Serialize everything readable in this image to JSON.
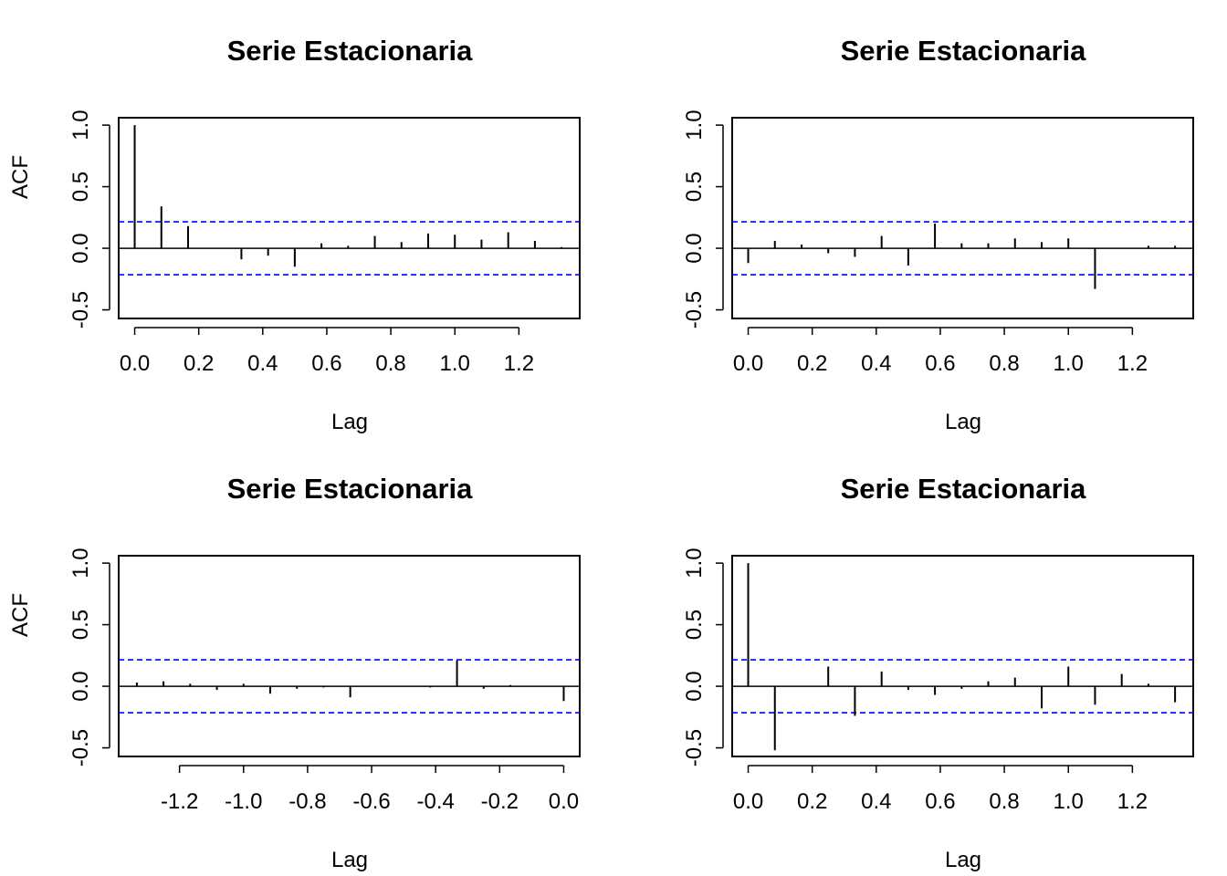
{
  "figure_title": "Serie Estacionaria",
  "chart_data": [
    {
      "type": "bar",
      "title": "Serie Estacionaria",
      "xlabel": "Lag",
      "ylabel": "ACF",
      "xlim": [
        -0.05,
        1.39
      ],
      "ylim": [
        -0.57,
        1.06
      ],
      "xticks": [
        0.0,
        0.2,
        0.4,
        0.6,
        0.8,
        1.0,
        1.2
      ],
      "xtick_labels": [
        "0.0",
        "0.2",
        "0.4",
        "0.6",
        "0.8",
        "1.0",
        "1.2"
      ],
      "yticks": [
        -0.5,
        0.0,
        0.5,
        1.0
      ],
      "ytick_labels": [
        "-0.5",
        "0.0",
        "0.5",
        "1.0"
      ],
      "ci": 0.215,
      "lags": [
        0.0,
        0.0833,
        0.1667,
        0.25,
        0.3333,
        0.4167,
        0.5,
        0.5833,
        0.6667,
        0.75,
        0.8333,
        0.9167,
        1.0,
        1.0833,
        1.1667,
        1.25,
        1.3333
      ],
      "values": [
        1.0,
        0.34,
        0.18,
        0.0,
        -0.09,
        -0.06,
        -0.15,
        0.04,
        0.02,
        0.1,
        0.05,
        0.12,
        0.11,
        0.07,
        0.13,
        0.06,
        0.01
      ]
    },
    {
      "type": "bar",
      "title": "Serie Estacionaria",
      "xlabel": "Lag",
      "ylabel": "",
      "xlim": [
        -0.05,
        1.39
      ],
      "ylim": [
        -0.57,
        1.06
      ],
      "xticks": [
        0.0,
        0.2,
        0.4,
        0.6,
        0.8,
        1.0,
        1.2
      ],
      "xtick_labels": [
        "0.0",
        "0.2",
        "0.4",
        "0.6",
        "0.8",
        "1.0",
        "1.2"
      ],
      "yticks": [
        -0.5,
        0.0,
        0.5,
        1.0
      ],
      "ytick_labels": [
        "-0.5",
        "0.0",
        "0.5",
        "1.0"
      ],
      "ci": 0.215,
      "lags": [
        0.0,
        0.0833,
        0.1667,
        0.25,
        0.3333,
        0.4167,
        0.5,
        0.5833,
        0.6667,
        0.75,
        0.8333,
        0.9167,
        1.0,
        1.0833,
        1.1667,
        1.25,
        1.3333
      ],
      "values": [
        -0.12,
        0.06,
        0.03,
        -0.04,
        -0.07,
        0.1,
        -0.14,
        0.2,
        0.04,
        0.04,
        0.08,
        0.05,
        0.08,
        -0.33,
        0.0,
        0.02,
        0.02
      ]
    },
    {
      "type": "bar",
      "title": "Serie Estacionaria",
      "xlabel": "Lag",
      "ylabel": "ACF",
      "xlim": [
        -1.39,
        0.05
      ],
      "ylim": [
        -0.57,
        1.06
      ],
      "xticks": [
        -1.2,
        -1.0,
        -0.8,
        -0.6,
        -0.4,
        -0.2,
        0.0
      ],
      "xtick_labels": [
        "-1.2",
        "-1.0",
        "-0.8",
        "-0.6",
        "-0.4",
        "-0.2",
        "0.0"
      ],
      "yticks": [
        -0.5,
        0.0,
        0.5,
        1.0
      ],
      "ytick_labels": [
        "-0.5",
        "0.0",
        "0.5",
        "1.0"
      ],
      "ci": 0.215,
      "lags": [
        -1.3333,
        -1.25,
        -1.1667,
        -1.0833,
        -1.0,
        -0.9167,
        -0.8333,
        -0.75,
        -0.6667,
        -0.5833,
        -0.5,
        -0.4167,
        -0.3333,
        -0.25,
        -0.1667,
        -0.0833,
        0.0
      ],
      "values": [
        0.03,
        0.04,
        0.02,
        -0.03,
        0.02,
        -0.06,
        -0.02,
        -0.01,
        -0.09,
        0.0,
        0.0,
        -0.01,
        0.21,
        -0.02,
        0.01,
        0.0,
        -0.12
      ]
    },
    {
      "type": "bar",
      "title": "Serie Estacionaria",
      "xlabel": "Lag",
      "ylabel": "",
      "xlim": [
        -0.05,
        1.39
      ],
      "ylim": [
        -0.57,
        1.06
      ],
      "xticks": [
        0.0,
        0.2,
        0.4,
        0.6,
        0.8,
        1.0,
        1.2
      ],
      "xtick_labels": [
        "0.0",
        "0.2",
        "0.4",
        "0.6",
        "0.8",
        "1.0",
        "1.2"
      ],
      "yticks": [
        -0.5,
        0.0,
        0.5,
        1.0
      ],
      "ytick_labels": [
        "-0.5",
        "0.0",
        "0.5",
        "1.0"
      ],
      "ci": 0.215,
      "lags": [
        0.0,
        0.0833,
        0.1667,
        0.25,
        0.3333,
        0.4167,
        0.5,
        0.5833,
        0.6667,
        0.75,
        0.8333,
        0.9167,
        1.0,
        1.0833,
        1.1667,
        1.25,
        1.3333
      ],
      "values": [
        1.0,
        -0.52,
        0.0,
        0.16,
        -0.24,
        0.12,
        -0.03,
        -0.07,
        -0.02,
        0.04,
        0.07,
        -0.18,
        0.16,
        -0.15,
        0.1,
        0.02,
        -0.13
      ]
    }
  ],
  "colors": {
    "ci_line": "#0000ff",
    "bars": "#000000",
    "axes": "#000000",
    "background": "#ffffff"
  }
}
